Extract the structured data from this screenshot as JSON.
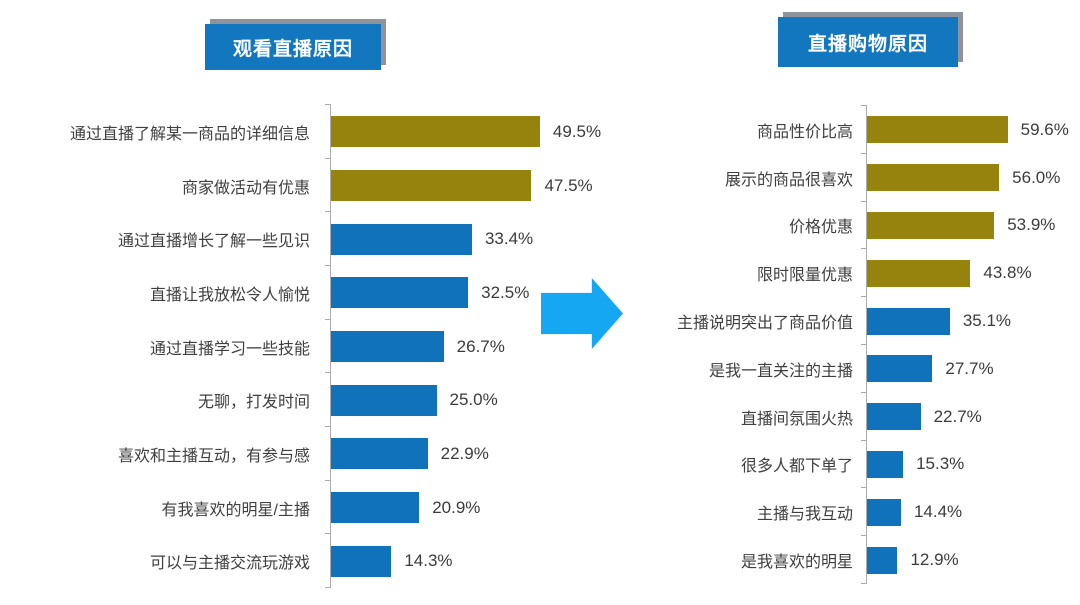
{
  "colors": {
    "gold": "#96830D",
    "blue": "#1172BC",
    "arrow": "#16A7F2",
    "title_bg": "#1377BF",
    "title_text": "#ffffff",
    "title_shadow": "#8D949C",
    "axis": "#ABABAB",
    "label_text": "#3F3F3F"
  },
  "titles": {
    "left": "观看直播原因",
    "right": "直播购物原因"
  },
  "chart_data": [
    {
      "type": "bar",
      "orientation": "horizontal",
      "title": "观看直播原因",
      "xlabel": "",
      "ylabel": "",
      "xlim": [
        0,
        60
      ],
      "grid": false,
      "legend": "none",
      "categories": [
        "通过直播了解某一商品的详细信息",
        "商家做活动有优惠",
        "通过直播增长了解一些见识",
        "直播让我放松令人愉悦",
        "通过直播学习一些技能",
        "无聊，打发时间",
        "喜欢和主播互动，有参与感",
        "有我喜欢的明星/主播",
        "可以与主播交流玩游戏"
      ],
      "values": [
        49.5,
        47.5,
        33.4,
        32.5,
        26.7,
        25.0,
        22.9,
        20.9,
        14.3
      ],
      "value_labels": [
        "49.5%",
        "47.5%",
        "33.4%",
        "32.5%",
        "26.7%",
        "25.0%",
        "22.9%",
        "20.9%",
        "14.3%"
      ],
      "bar_colors": [
        "gold",
        "gold",
        "blue",
        "blue",
        "blue",
        "blue",
        "blue",
        "blue",
        "blue"
      ]
    },
    {
      "type": "bar",
      "orientation": "horizontal",
      "title": "直播购物原因",
      "xlabel": "",
      "ylabel": "",
      "xlim": [
        0,
        70
      ],
      "grid": false,
      "legend": "none",
      "categories": [
        "商品性价比高",
        "展示的商品很喜欢",
        "价格优惠",
        "限时限量优惠",
        "主播说明突出了商品价值",
        "是我一直关注的主播",
        "直播间氛围火热",
        "很多人都下单了",
        "主播与我互动",
        "是我喜欢的明星"
      ],
      "values": [
        59.6,
        56.0,
        53.9,
        43.8,
        35.1,
        27.7,
        22.7,
        15.3,
        14.4,
        12.9
      ],
      "value_labels": [
        "59.6%",
        "56.0%",
        "53.9%",
        "43.8%",
        "35.1%",
        "27.7%",
        "22.7%",
        "15.3%",
        "14.4%",
        "12.9%"
      ],
      "bar_colors": [
        "gold",
        "gold",
        "gold",
        "gold",
        "blue",
        "blue",
        "blue",
        "blue",
        "blue",
        "blue"
      ]
    }
  ],
  "arrow": {
    "meaning": "right-arrow"
  }
}
